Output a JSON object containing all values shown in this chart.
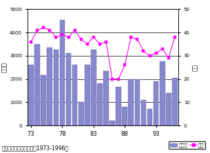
{
  "title": "織田山の放鳥数と種数（1973-1996）",
  "years": [
    1973,
    1974,
    1975,
    1976,
    1977,
    1978,
    1979,
    1980,
    1981,
    1982,
    1983,
    1984,
    1985,
    1986,
    1987,
    1988,
    1989,
    1990,
    1991,
    1992,
    1993,
    1994,
    1995,
    1996
  ],
  "bird_count": [
    2600,
    3500,
    2150,
    3350,
    3250,
    4550,
    3100,
    2600,
    1000,
    2600,
    3250,
    1800,
    2350,
    200,
    1650,
    800,
    2000,
    2000,
    1100,
    700,
    1900,
    2750,
    1400,
    2050
  ],
  "species_count": [
    36,
    41,
    42,
    41,
    38,
    39,
    38,
    41,
    37,
    35,
    38,
    35,
    36,
    20,
    20,
    26,
    38,
    37,
    32,
    30,
    31,
    33,
    29,
    38
  ],
  "bar_color": "#8888cc",
  "bar_edge_color": "#6666aa",
  "line_color": "#ff00ff",
  "marker_color": "#ff00ff",
  "ylabel_left": "放鳥数",
  "ylabel_right": "種数",
  "xlabel_ticks": [
    73,
    78,
    83,
    88,
    93
  ],
  "ylim_left": [
    0,
    5000
  ],
  "ylim_right": [
    0,
    50
  ],
  "yticks_left": [
    0,
    1000,
    2000,
    3000,
    4000,
    5000
  ],
  "yticks_right": [
    0,
    10,
    20,
    30,
    40,
    50
  ],
  "legend_bar": "放鳥数",
  "legend_line": "種数",
  "bg_color": "#ffffff",
  "grid_color": "#000000",
  "figsize": [
    3.05,
    2.22
  ],
  "dpi": 100
}
